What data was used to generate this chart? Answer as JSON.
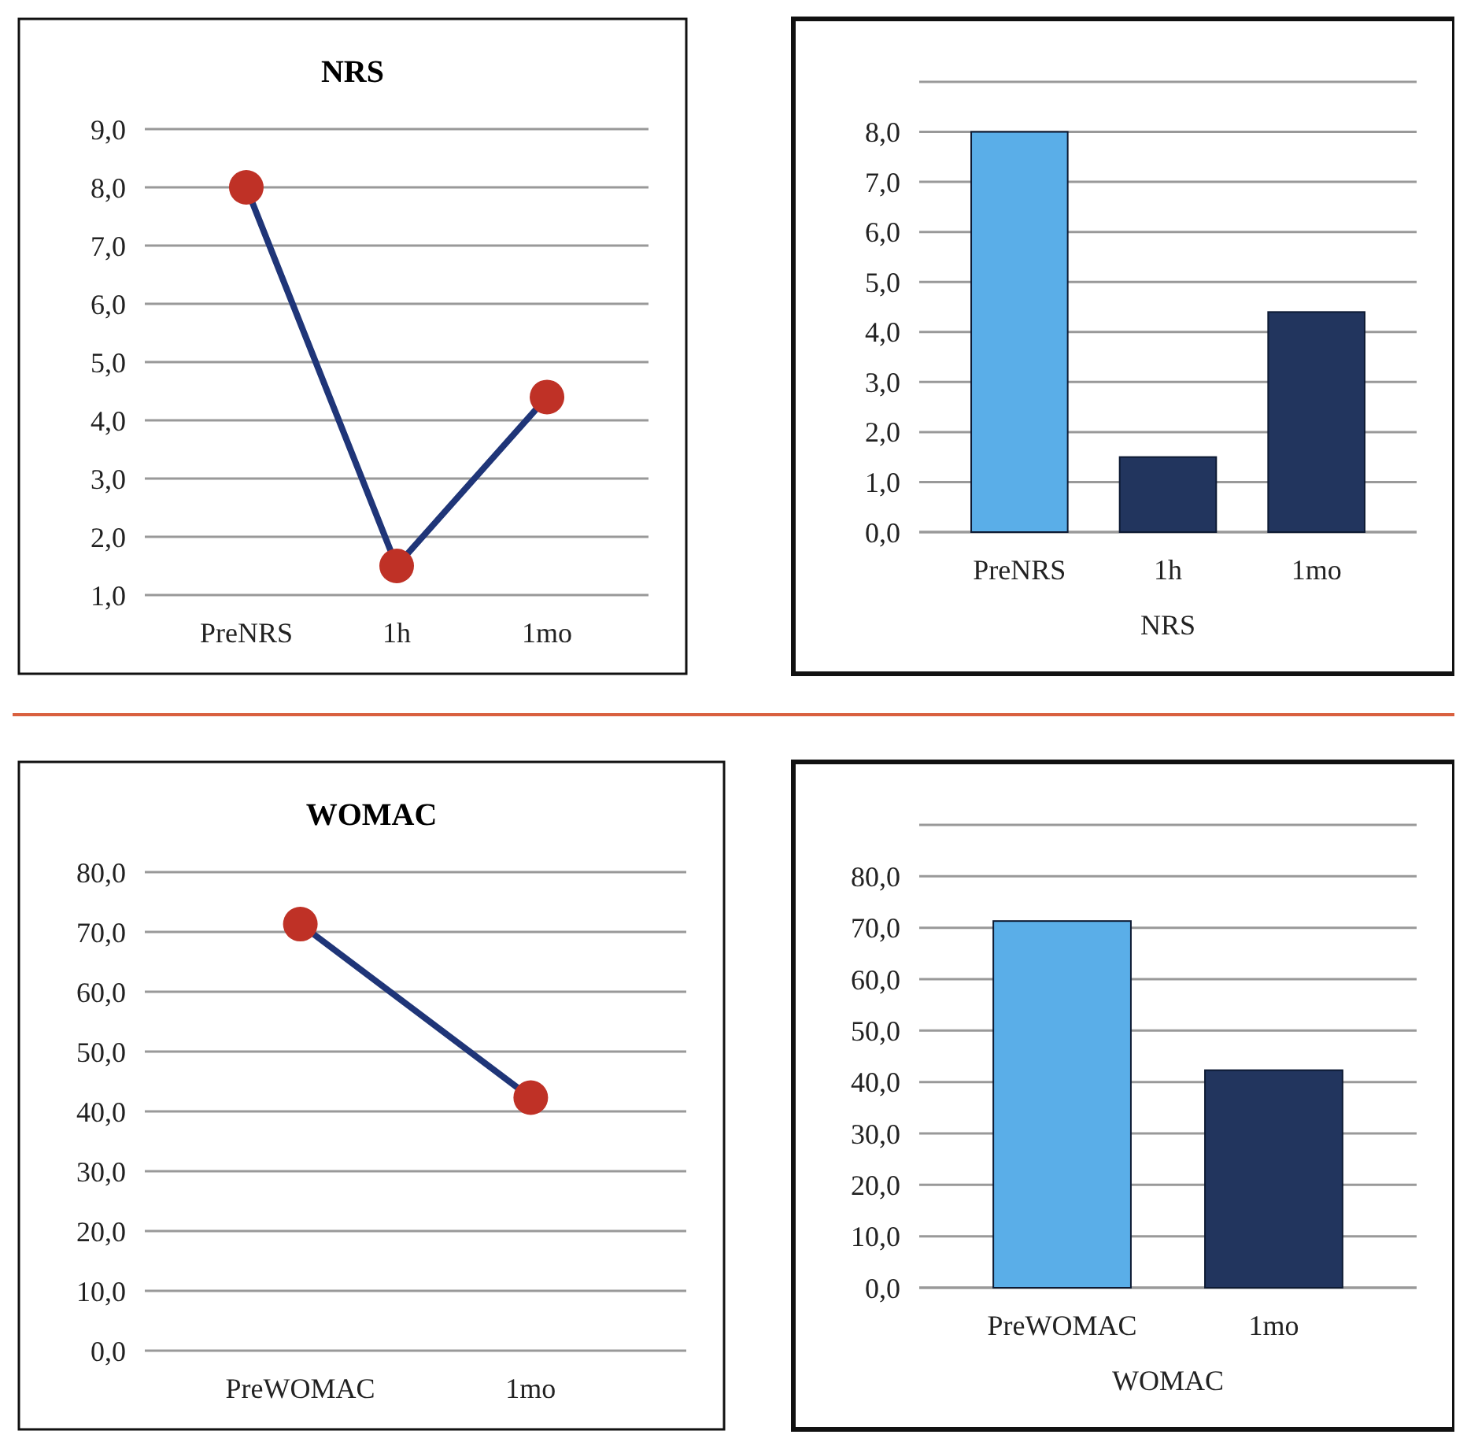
{
  "chart_data": [
    {
      "type": "line",
      "title": "NRS",
      "categories": [
        "PreNRS",
        "1h",
        "1mo"
      ],
      "series": [
        {
          "color": "#1f3578",
          "values": [
            8.0,
            1.5,
            4.4
          ]
        }
      ],
      "marker": "circle",
      "ylim": [
        1,
        9
      ],
      "yticks": [
        {
          "value": 1,
          "label": "1,0"
        },
        {
          "value": 2,
          "label": "2,0"
        },
        {
          "value": 3,
          "label": "3,0"
        },
        {
          "value": 4,
          "label": "4,0"
        },
        {
          "value": 5,
          "label": "5,0"
        },
        {
          "value": 6,
          "label": "6,0"
        },
        {
          "value": 7,
          "label": "7,0"
        },
        {
          "value": 8,
          "label": "8,0"
        },
        {
          "value": 9,
          "label": "9,0"
        }
      ],
      "grid": "y"
    },
    {
      "type": "bar",
      "xlabel": "NRS",
      "categories": [
        "PreNRS",
        "1h",
        "1mo"
      ],
      "values": [
        8.0,
        1.5,
        4.4
      ],
      "colors": [
        "#5aaee8",
        "#22355e",
        "#22355e"
      ],
      "ylim": [
        0,
        9
      ],
      "yticks": [
        {
          "value": 0,
          "label": "0,0"
        },
        {
          "value": 1,
          "label": "1,0"
        },
        {
          "value": 2,
          "label": "2,0"
        },
        {
          "value": 3,
          "label": "3,0"
        },
        {
          "value": 4,
          "label": "4,0"
        },
        {
          "value": 5,
          "label": "5,0"
        },
        {
          "value": 6,
          "label": "6,0"
        },
        {
          "value": 7,
          "label": "7,0"
        },
        {
          "value": 8,
          "label": "8,0"
        },
        {
          "value": 9,
          "label": null
        }
      ],
      "grid": "y"
    },
    {
      "type": "line",
      "title": "WOMAC",
      "categories": [
        "PreWOMAC",
        "1mo"
      ],
      "series": [
        {
          "color": "#1f3578",
          "values": [
            71.3,
            42.3
          ]
        }
      ],
      "marker": "circle",
      "ylim": [
        0,
        80
      ],
      "yticks": [
        {
          "value": 0,
          "label": "0,0"
        },
        {
          "value": 10,
          "label": "10,0"
        },
        {
          "value": 20,
          "label": "20,0"
        },
        {
          "value": 30,
          "label": "30,0"
        },
        {
          "value": 40,
          "label": "40,0"
        },
        {
          "value": 50,
          "label": "50,0"
        },
        {
          "value": 60,
          "label": "60,0"
        },
        {
          "value": 70,
          "label": "70,0"
        },
        {
          "value": 80,
          "label": "80,0"
        }
      ],
      "grid": "y"
    },
    {
      "type": "bar",
      "xlabel": "WOMAC",
      "categories": [
        "PreWOMAC",
        "1mo"
      ],
      "values": [
        71.3,
        42.3
      ],
      "colors": [
        "#5aaee8",
        "#22355e"
      ],
      "ylim": [
        0,
        90
      ],
      "yticks": [
        {
          "value": 0,
          "label": "0,0"
        },
        {
          "value": 10,
          "label": "10,0"
        },
        {
          "value": 20,
          "label": "20,0"
        },
        {
          "value": 30,
          "label": "30,0"
        },
        {
          "value": 40,
          "label": "40,0"
        },
        {
          "value": 50,
          "label": "50,0"
        },
        {
          "value": 60,
          "label": "60,0"
        },
        {
          "value": 70,
          "label": "70,0"
        },
        {
          "value": 80,
          "label": "80,0"
        },
        {
          "value": 90,
          "label": null
        }
      ],
      "grid": "y"
    }
  ]
}
